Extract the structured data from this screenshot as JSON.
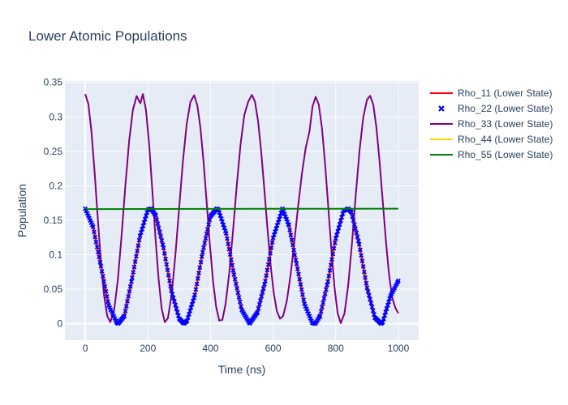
{
  "chart_data": {
    "type": "line",
    "title": "Lower Atomic Populations",
    "xlabel": "Time (ns)",
    "ylabel": "Population",
    "xlim": [
      -65,
      1065
    ],
    "ylim": [
      -0.024,
      0.352
    ],
    "xticks": [
      0,
      200,
      400,
      600,
      800,
      1000
    ],
    "xtick_labels": [
      "0",
      "200",
      "400",
      "600",
      "800",
      "1000"
    ],
    "yticks": [
      0,
      0.05,
      0.1,
      0.15,
      0.2,
      0.25,
      0.3,
      0.35
    ],
    "ytick_labels": [
      "0",
      "0.05",
      "0.1",
      "0.15",
      "0.2",
      "0.25",
      "0.3",
      "0.35"
    ],
    "grid": true,
    "legend_position": "top-right",
    "background": "#e5ecf6",
    "series": [
      {
        "name": "Rho_11 (Lower State)",
        "color": "#ff0000",
        "style": "line",
        "x": [
          0,
          25,
          50,
          75,
          100,
          105,
          125,
          150,
          175,
          200,
          210,
          225,
          250,
          275,
          300,
          315,
          325,
          350,
          375,
          400,
          420,
          425,
          450,
          475,
          500,
          525,
          550,
          575,
          600,
          630,
          650,
          675,
          700,
          725,
          735,
          750,
          775,
          800,
          825,
          840,
          850,
          875,
          900,
          925,
          945,
          950,
          975,
          1000
        ],
        "y": [
          0.1667,
          0.1404,
          0.0833,
          0.0263,
          0.0019,
          0.0001,
          0.0113,
          0.0667,
          0.1273,
          0.1653,
          0.1667,
          0.1571,
          0.1098,
          0.0478,
          0.0072,
          0.0002,
          0.004,
          0.0417,
          0.1036,
          0.1559,
          0.1667,
          0.1655,
          0.131,
          0.0711,
          0.0197,
          0.0003,
          0.0163,
          0.0617,
          0.1244,
          0.1667,
          0.143,
          0.0867,
          0.0286,
          0.0012,
          0.0,
          0.0112,
          0.0613,
          0.1236,
          0.1637,
          0.1667,
          0.1615,
          0.1152,
          0.0522,
          0.0087,
          0.0,
          0.0022,
          0.0405,
          0.0622
        ]
      },
      {
        "name": "Rho_22 (Lower State)",
        "color": "#0000ff",
        "style": "markers",
        "marker": "x",
        "x": [
          0,
          25,
          50,
          75,
          100,
          105,
          125,
          150,
          175,
          200,
          210,
          225,
          250,
          275,
          300,
          315,
          325,
          350,
          375,
          400,
          420,
          425,
          450,
          475,
          500,
          525,
          550,
          575,
          600,
          630,
          650,
          675,
          700,
          725,
          735,
          750,
          775,
          800,
          825,
          840,
          850,
          875,
          900,
          925,
          945,
          950,
          975,
          1000
        ],
        "y": [
          0.1667,
          0.1404,
          0.0833,
          0.0263,
          0.0019,
          0.0001,
          0.0113,
          0.0667,
          0.1273,
          0.1653,
          0.1667,
          0.1571,
          0.1098,
          0.0478,
          0.0072,
          0.0002,
          0.004,
          0.0417,
          0.1036,
          0.1559,
          0.1667,
          0.1655,
          0.131,
          0.0711,
          0.0197,
          0.0003,
          0.0163,
          0.0617,
          0.1244,
          0.1667,
          0.143,
          0.0867,
          0.0286,
          0.0012,
          0.0,
          0.0112,
          0.0613,
          0.1236,
          0.1637,
          0.1667,
          0.1615,
          0.1152,
          0.0522,
          0.0087,
          0.0,
          0.0022,
          0.0405,
          0.0622
        ]
      },
      {
        "name": "Rho_33 (Lower State)",
        "color": "#800080",
        "style": "line",
        "x": [
          0,
          10,
          20,
          30,
          40,
          50,
          60,
          70,
          80,
          92,
          104,
          116,
          128,
          140,
          152,
          164,
          176,
          184,
          194,
          204,
          214,
          224,
          234,
          244,
          254,
          264,
          276,
          288,
          300,
          312,
          324,
          336,
          348,
          358,
          368,
          378,
          388,
          398,
          408,
          418,
          428,
          438,
          448,
          460,
          472,
          484,
          496,
          508,
          520,
          532,
          542,
          552,
          562,
          572,
          582,
          592,
          602,
          612,
          622,
          632,
          644,
          656,
          668,
          680,
          692,
          704,
          716,
          726,
          736,
          746,
          756,
          766,
          776,
          786,
          796,
          806,
          816,
          828,
          840,
          852,
          864,
          876,
          888,
          900,
          910,
          920,
          930,
          940,
          950,
          960,
          970,
          980,
          990,
          1000
        ],
        "y": [
          0.333,
          0.3186,
          0.2778,
          0.2187,
          0.1528,
          0.0903,
          0.0411,
          0.0115,
          0.0022,
          0.0187,
          0.0632,
          0.1278,
          0.1996,
          0.2644,
          0.3099,
          0.3302,
          0.3196,
          0.333,
          0.3098,
          0.2604,
          0.1949,
          0.1263,
          0.0658,
          0.0221,
          0.0021,
          0.0079,
          0.0427,
          0.1001,
          0.1685,
          0.2359,
          0.2897,
          0.3219,
          0.3313,
          0.3164,
          0.2834,
          0.2339,
          0.1745,
          0.1148,
          0.0625,
          0.0245,
          0.0044,
          0.0056,
          0.028,
          0.0738,
          0.1351,
          0.2009,
          0.2602,
          0.3026,
          0.3214,
          0.3318,
          0.3222,
          0.2937,
          0.2494,
          0.1947,
          0.1376,
          0.0854,
          0.0445,
          0.0182,
          0.0072,
          0.0111,
          0.0334,
          0.0715,
          0.1196,
          0.1706,
          0.2175,
          0.2547,
          0.2785,
          0.3154,
          0.329,
          0.3175,
          0.2836,
          0.2322,
          0.1706,
          0.1078,
          0.0532,
          0.0154,
          0.0007,
          0.0149,
          0.0563,
          0.1174,
          0.1866,
          0.251,
          0.2995,
          0.325,
          0.3306,
          0.3176,
          0.2843,
          0.2355,
          0.1785,
          0.1214,
          0.0724,
          0.0385,
          0.0233,
          0.015
        ]
      },
      {
        "name": "Rho_44 (Lower State)",
        "color": "#ffd700",
        "style": "line",
        "x": [
          0,
          25,
          50,
          75,
          100,
          105,
          125,
          150,
          175,
          200,
          210,
          225,
          250,
          275,
          300,
          315,
          325,
          350,
          375,
          400,
          420,
          425,
          450,
          475,
          500,
          525,
          550,
          575,
          600,
          630,
          650,
          675,
          700,
          725,
          735,
          750,
          775,
          800,
          825,
          840,
          850,
          875,
          900,
          925,
          945,
          950,
          975,
          1000
        ],
        "y": [
          0.1667,
          0.1404,
          0.0833,
          0.0263,
          0.0019,
          0.0001,
          0.0113,
          0.0667,
          0.1273,
          0.1653,
          0.1667,
          0.1571,
          0.1098,
          0.0478,
          0.0072,
          0.0002,
          0.004,
          0.0417,
          0.1036,
          0.1559,
          0.1667,
          0.1655,
          0.131,
          0.0711,
          0.0197,
          0.0003,
          0.0163,
          0.0617,
          0.1244,
          0.1667,
          0.143,
          0.0867,
          0.0286,
          0.0012,
          0.0,
          0.0112,
          0.0613,
          0.1236,
          0.1637,
          0.1667,
          0.1615,
          0.1152,
          0.0522,
          0.0087,
          0.0,
          0.0022,
          0.0405,
          0.0622
        ]
      },
      {
        "name": "Rho_55 (Lower State)",
        "color": "#008000",
        "style": "line",
        "x": [
          0,
          200,
          400,
          600,
          800,
          1000
        ],
        "y": [
          0.1662,
          0.1664,
          0.1665,
          0.1666,
          0.1667,
          0.1668
        ]
      }
    ]
  }
}
